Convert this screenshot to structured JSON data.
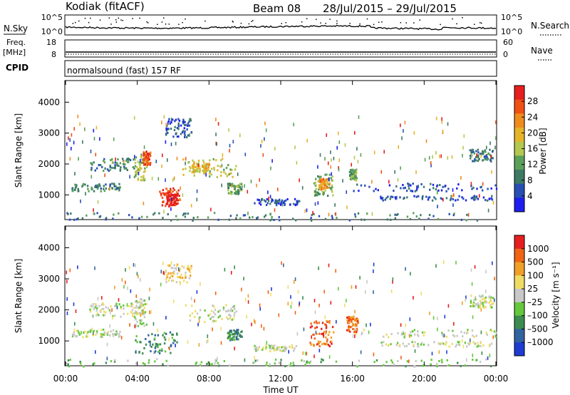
{
  "header": {
    "site": "Kodiak",
    "mode": "(fitACF)",
    "beam": "Beam 08",
    "date_range": "28/Jul/2015 – 29/Jul/2015"
  },
  "top_panels": {
    "nsky": {
      "label": "N.Sky",
      "right_label": "N.Search",
      "ticks": [
        "10^5",
        "10^0"
      ],
      "right_ticks": [
        "10^5",
        "10^0"
      ]
    },
    "freq": {
      "label_line1": "Freq.",
      "label_line2": "[MHz]",
      "right_label": "Nave",
      "ticks": [
        "18",
        "8"
      ],
      "right_ticks": [
        "60",
        "0"
      ]
    },
    "cpid": {
      "label": "CPID",
      "program": "normalsound (fast) 157 RF"
    }
  },
  "chart_data": [
    {
      "type": "heatmap",
      "quantity": "power",
      "ylabel": "Slant Range [km]",
      "ylim": [
        200,
        4700
      ],
      "yticks": [
        "4000",
        "3000",
        "2000",
        "1000"
      ],
      "colorbar_label": "Power [dB]",
      "colorbar_ticks": [
        "28",
        "24",
        "20",
        "16",
        "12",
        "8",
        "4"
      ],
      "colorbar_colors": [
        "#1e1ef0",
        "#2850b4",
        "#3c7a64",
        "#5aa05a",
        "#b4c850",
        "#e6b428",
        "#f08c1e",
        "#f05014",
        "#e61e1e"
      ],
      "scatter_regions": [
        {
          "t0": 1.3,
          "t1": 3.8,
          "r0": 1800,
          "r1": 2250,
          "level": 2
        },
        {
          "t0": 3.8,
          "t1": 4.5,
          "r0": 1500,
          "r1": 2400,
          "level": 4
        },
        {
          "t0": 4.3,
          "t1": 4.7,
          "r0": 2000,
          "r1": 2450,
          "level": 7
        },
        {
          "t0": 5.5,
          "t1": 7.0,
          "r0": 2900,
          "r1": 3500,
          "level": 1
        },
        {
          "t0": 6.5,
          "t1": 9.5,
          "r0": 1600,
          "r1": 2200,
          "level": 4
        },
        {
          "t0": 7.0,
          "t1": 8.0,
          "r0": 1750,
          "r1": 2050,
          "level": 5
        },
        {
          "t0": 5.2,
          "t1": 6.4,
          "r0": 650,
          "r1": 1250,
          "level": 7
        },
        {
          "t0": 5.6,
          "t1": 6.2,
          "r0": 700,
          "r1": 1050,
          "level": 8
        },
        {
          "t0": 13.8,
          "t1": 14.9,
          "r0": 1000,
          "r1": 1700,
          "level": 3
        },
        {
          "t0": 14.1,
          "t1": 14.6,
          "r0": 1200,
          "r1": 1550,
          "level": 6
        },
        {
          "t0": 15.8,
          "t1": 16.2,
          "r0": 1500,
          "r1": 1850,
          "level": 3
        },
        {
          "t0": 16.0,
          "t1": 24.0,
          "r0": 1150,
          "r1": 1400,
          "level": 1
        },
        {
          "t0": 17.5,
          "t1": 24.0,
          "r0": 850,
          "r1": 1000,
          "level": 1
        },
        {
          "t0": 9.0,
          "t1": 9.8,
          "r0": 1050,
          "r1": 1400,
          "level": 3
        },
        {
          "t0": 0.0,
          "t1": 24.0,
          "r0": 200,
          "r1": 450,
          "level": 2
        },
        {
          "t0": 0.3,
          "t1": 3.0,
          "r0": 1150,
          "r1": 1400,
          "level": 2
        },
        {
          "t0": 22.5,
          "t1": 23.8,
          "r0": 2100,
          "r1": 2500,
          "level": 2
        },
        {
          "t0": 10.5,
          "t1": 13.0,
          "r0": 700,
          "r1": 900,
          "level": 1
        }
      ]
    },
    {
      "type": "heatmap",
      "quantity": "velocity",
      "ylabel": "Slant Range [km]",
      "ylim": [
        200,
        4700
      ],
      "yticks": [
        "4000",
        "3000",
        "2000",
        "1000"
      ],
      "xlabel": "Time UT",
      "xticks": [
        "00:00",
        "04:00",
        "08:00",
        "12:00",
        "16:00",
        "20:00",
        "00:00"
      ],
      "colorbar_label": "Velocity [m s⁻¹]",
      "colorbar_ticks": [
        "1000",
        "500",
        "100",
        "25",
        "–25",
        "–100",
        "–500",
        "–1000"
      ],
      "colorbar_colors": [
        "#1e3cd2",
        "#3264a0",
        "#3c8c50",
        "#64c83c",
        "#c8c8c8",
        "#f0dc64",
        "#f0a028",
        "#f06414",
        "#e61e1e"
      ],
      "scatter_regions": [
        {
          "t0": 1.3,
          "t1": 3.8,
          "r0": 1800,
          "r1": 2250,
          "level": 4
        },
        {
          "t0": 3.8,
          "t1": 4.5,
          "r0": 1500,
          "r1": 2400,
          "level": 4
        },
        {
          "t0": 3.8,
          "t1": 6.2,
          "r0": 600,
          "r1": 1350,
          "level": 2
        },
        {
          "t0": 5.5,
          "t1": 7.0,
          "r0": 2900,
          "r1": 3500,
          "level": 5
        },
        {
          "t0": 6.5,
          "t1": 9.5,
          "r0": 1600,
          "r1": 2200,
          "level": 4
        },
        {
          "t0": 9.0,
          "t1": 9.8,
          "r0": 1050,
          "r1": 1400,
          "level": 2
        },
        {
          "t0": 13.6,
          "t1": 14.9,
          "r0": 850,
          "r1": 1700,
          "level": 7
        },
        {
          "t0": 15.6,
          "t1": 16.3,
          "r0": 1300,
          "r1": 1850,
          "level": 7
        },
        {
          "t0": 16.0,
          "t1": 24.0,
          "r0": 1150,
          "r1": 1400,
          "level": 4
        },
        {
          "t0": 17.5,
          "t1": 24.0,
          "r0": 850,
          "r1": 1000,
          "level": 4
        },
        {
          "t0": 0.0,
          "t1": 24.0,
          "r0": 200,
          "r1": 450,
          "level": 3
        },
        {
          "t0": 0.3,
          "t1": 3.0,
          "r0": 1150,
          "r1": 1400,
          "level": 4
        },
        {
          "t0": 22.5,
          "t1": 23.8,
          "r0": 2100,
          "r1": 2500,
          "level": 4
        },
        {
          "t0": 10.5,
          "t1": 13.0,
          "r0": 700,
          "r1": 900,
          "level": 4
        }
      ]
    }
  ]
}
